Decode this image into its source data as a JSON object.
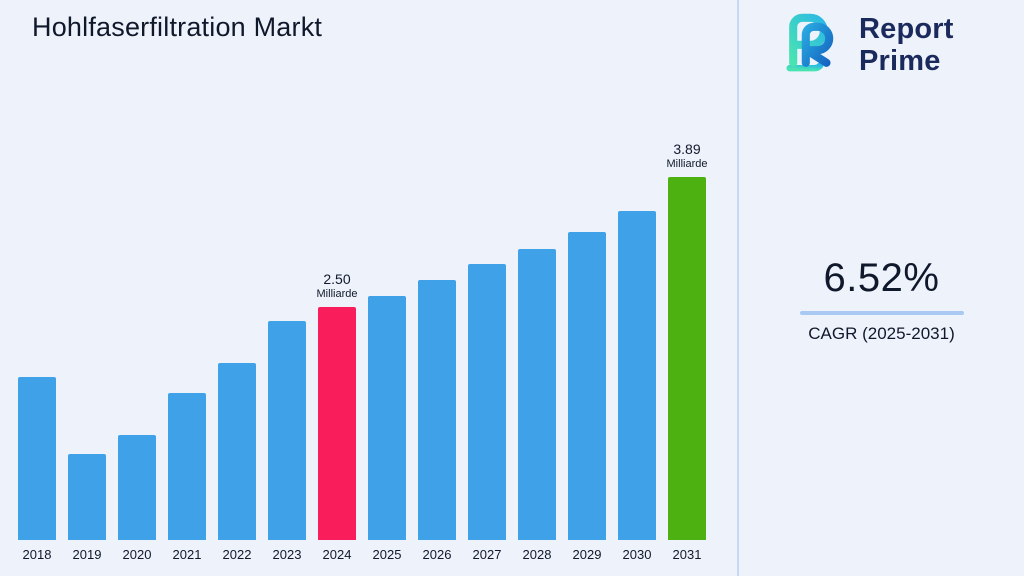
{
  "title": "Hohlfaserfiltration Markt",
  "logo": {
    "line1": "Report",
    "line2": "Prime",
    "icon": "report-prime-logo-mark",
    "text_color": "#1B2A5C",
    "gradient_teal": "#49E3B2",
    "gradient_blue": "#1565C0"
  },
  "cagr": {
    "value": "6.52%",
    "label": "CAGR (2025-2031)",
    "divider_color": "#A9C8F2"
  },
  "chart_data": {
    "type": "bar",
    "title": "Hohlfaserfiltration Markt",
    "categories": [
      "2018",
      "2019",
      "2020",
      "2021",
      "2022",
      "2023",
      "2024",
      "2025",
      "2026",
      "2027",
      "2028",
      "2029",
      "2030",
      "2031"
    ],
    "values": [
      1.75,
      0.92,
      1.12,
      1.58,
      1.9,
      2.35,
      2.5,
      2.62,
      2.79,
      2.96,
      3.12,
      3.3,
      3.53,
      3.89
    ],
    "unit": "Milliarde",
    "xlabel": "",
    "ylabel": "",
    "ylim": [
      0,
      4.2
    ],
    "grid": false,
    "legend": "none",
    "bar_color_default": "#3FA2E9",
    "annotated_bars": [
      {
        "category": "2024",
        "value_label": "2.50",
        "unit_label": "Milliarde",
        "color": "#F91E5B"
      },
      {
        "category": "2031",
        "value_label": "3.89",
        "unit_label": "Milliarde",
        "color": "#4DB112"
      }
    ]
  }
}
